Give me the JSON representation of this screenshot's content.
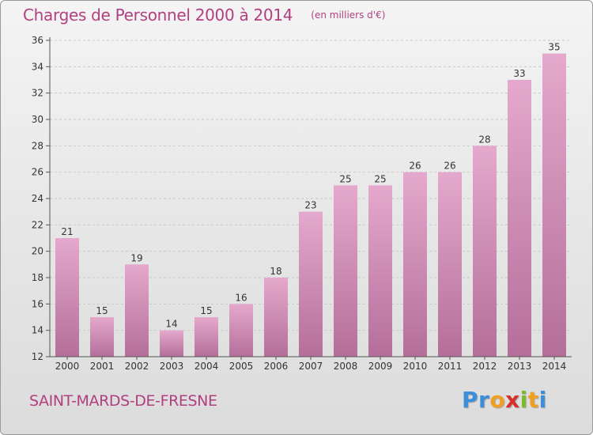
{
  "header": {
    "title": "Charges de Personnel 2000 à 2014",
    "subtitle": "(en milliers d'€)"
  },
  "footer": {
    "commune": "SAINT-MARDS-DE-FRESNE",
    "logo": {
      "text": "Proxiti",
      "letters": [
        {
          "char": "P",
          "color": "#3a8fd8"
        },
        {
          "char": "r",
          "color": "#3a8fd8"
        },
        {
          "char": "o",
          "color": "#f0a020"
        },
        {
          "char": "x",
          "color": "#d8302a"
        },
        {
          "char": "i",
          "color": "#7dbb2d"
        },
        {
          "char": "t",
          "color": "#f0a020"
        },
        {
          "char": "i",
          "color": "#3a8fd8"
        }
      ]
    }
  },
  "colors": {
    "accent": "#b0407f",
    "bar_top": "#e4a9cc",
    "bar_bottom": "#b46f99",
    "axis": "#555555",
    "grid": "#c8c8c8"
  },
  "chart_data": {
    "type": "bar",
    "categories": [
      "2000",
      "2001",
      "2002",
      "2003",
      "2004",
      "2005",
      "2006",
      "2007",
      "2008",
      "2009",
      "2010",
      "2011",
      "2012",
      "2013",
      "2014"
    ],
    "values": [
      21,
      15,
      19,
      14,
      15,
      16,
      18,
      23,
      25,
      25,
      26,
      26,
      28,
      33,
      35
    ],
    "title": "Charges de Personnel 2000 à 2014",
    "subtitle": "(en milliers d'€)",
    "xlabel": "",
    "ylabel": "",
    "ylim": [
      12,
      36
    ],
    "yticks": [
      12,
      14,
      16,
      18,
      20,
      22,
      24,
      26,
      28,
      30,
      32,
      34,
      36
    ],
    "grid": true,
    "data_labels": true
  }
}
